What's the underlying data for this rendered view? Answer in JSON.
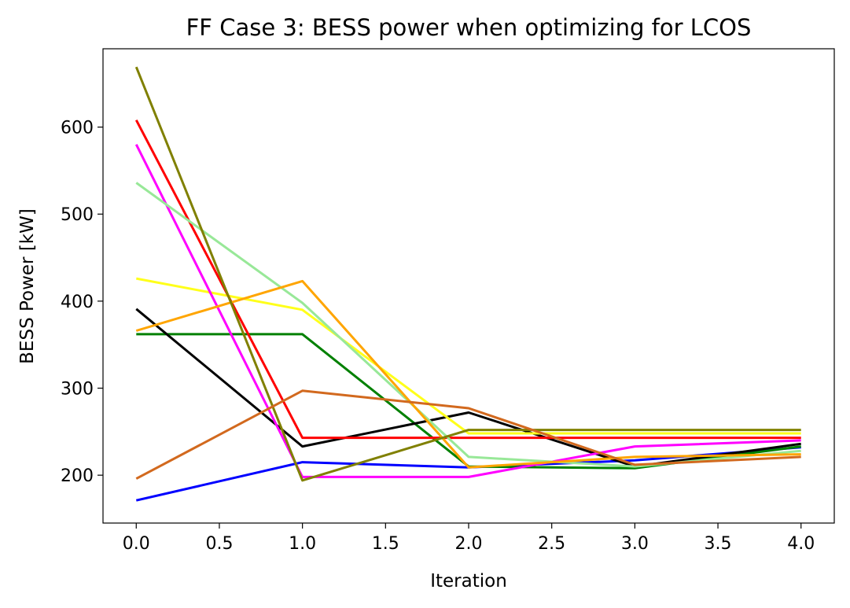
{
  "chart_data": {
    "type": "line",
    "title": "FF Case 3: BESS power when optimizing for LCOS",
    "xlabel": "Iteration",
    "ylabel": "BESS Power [kW]",
    "xlim": [
      -0.2,
      4.2
    ],
    "ylim": [
      145,
      690
    ],
    "xticks": [
      0.0,
      0.5,
      1.0,
      1.5,
      2.0,
      2.5,
      3.0,
      3.5,
      4.0
    ],
    "xtick_labels": [
      "0.0",
      "0.5",
      "1.0",
      "1.5",
      "2.0",
      "2.5",
      "3.0",
      "3.5",
      "4.0"
    ],
    "yticks": [
      200,
      300,
      400,
      500,
      600
    ],
    "ytick_labels": [
      "200",
      "300",
      "400",
      "500",
      "600"
    ],
    "grid": false,
    "legend": "none",
    "x": [
      0,
      1,
      2,
      3,
      4
    ],
    "series": [
      {
        "color": "#0000ff",
        "values": [
          171,
          215,
          209,
          217,
          232
        ]
      },
      {
        "color": "#008000",
        "values": [
          362,
          362,
          210,
          208,
          233
        ]
      },
      {
        "color": "#000000",
        "values": [
          391,
          233,
          272,
          210,
          236
        ]
      },
      {
        "color": "#ffff1a",
        "values": [
          426,
          390,
          248,
          248,
          248
        ]
      },
      {
        "color": "#ff0000",
        "values": [
          608,
          243,
          243,
          243,
          243
        ]
      },
      {
        "color": "#ff00ff",
        "values": [
          580,
          198,
          198,
          233,
          240
        ]
      },
      {
        "color": "#98e898",
        "values": [
          536,
          398,
          221,
          210,
          228
        ]
      },
      {
        "color": "#ffa500",
        "values": [
          366,
          423,
          209,
          221,
          224
        ]
      },
      {
        "color": "#808000",
        "values": [
          669,
          194,
          252,
          252,
          252
        ]
      },
      {
        "color": "#d2691e",
        "values": [
          196,
          297,
          277,
          212,
          221
        ]
      }
    ]
  }
}
